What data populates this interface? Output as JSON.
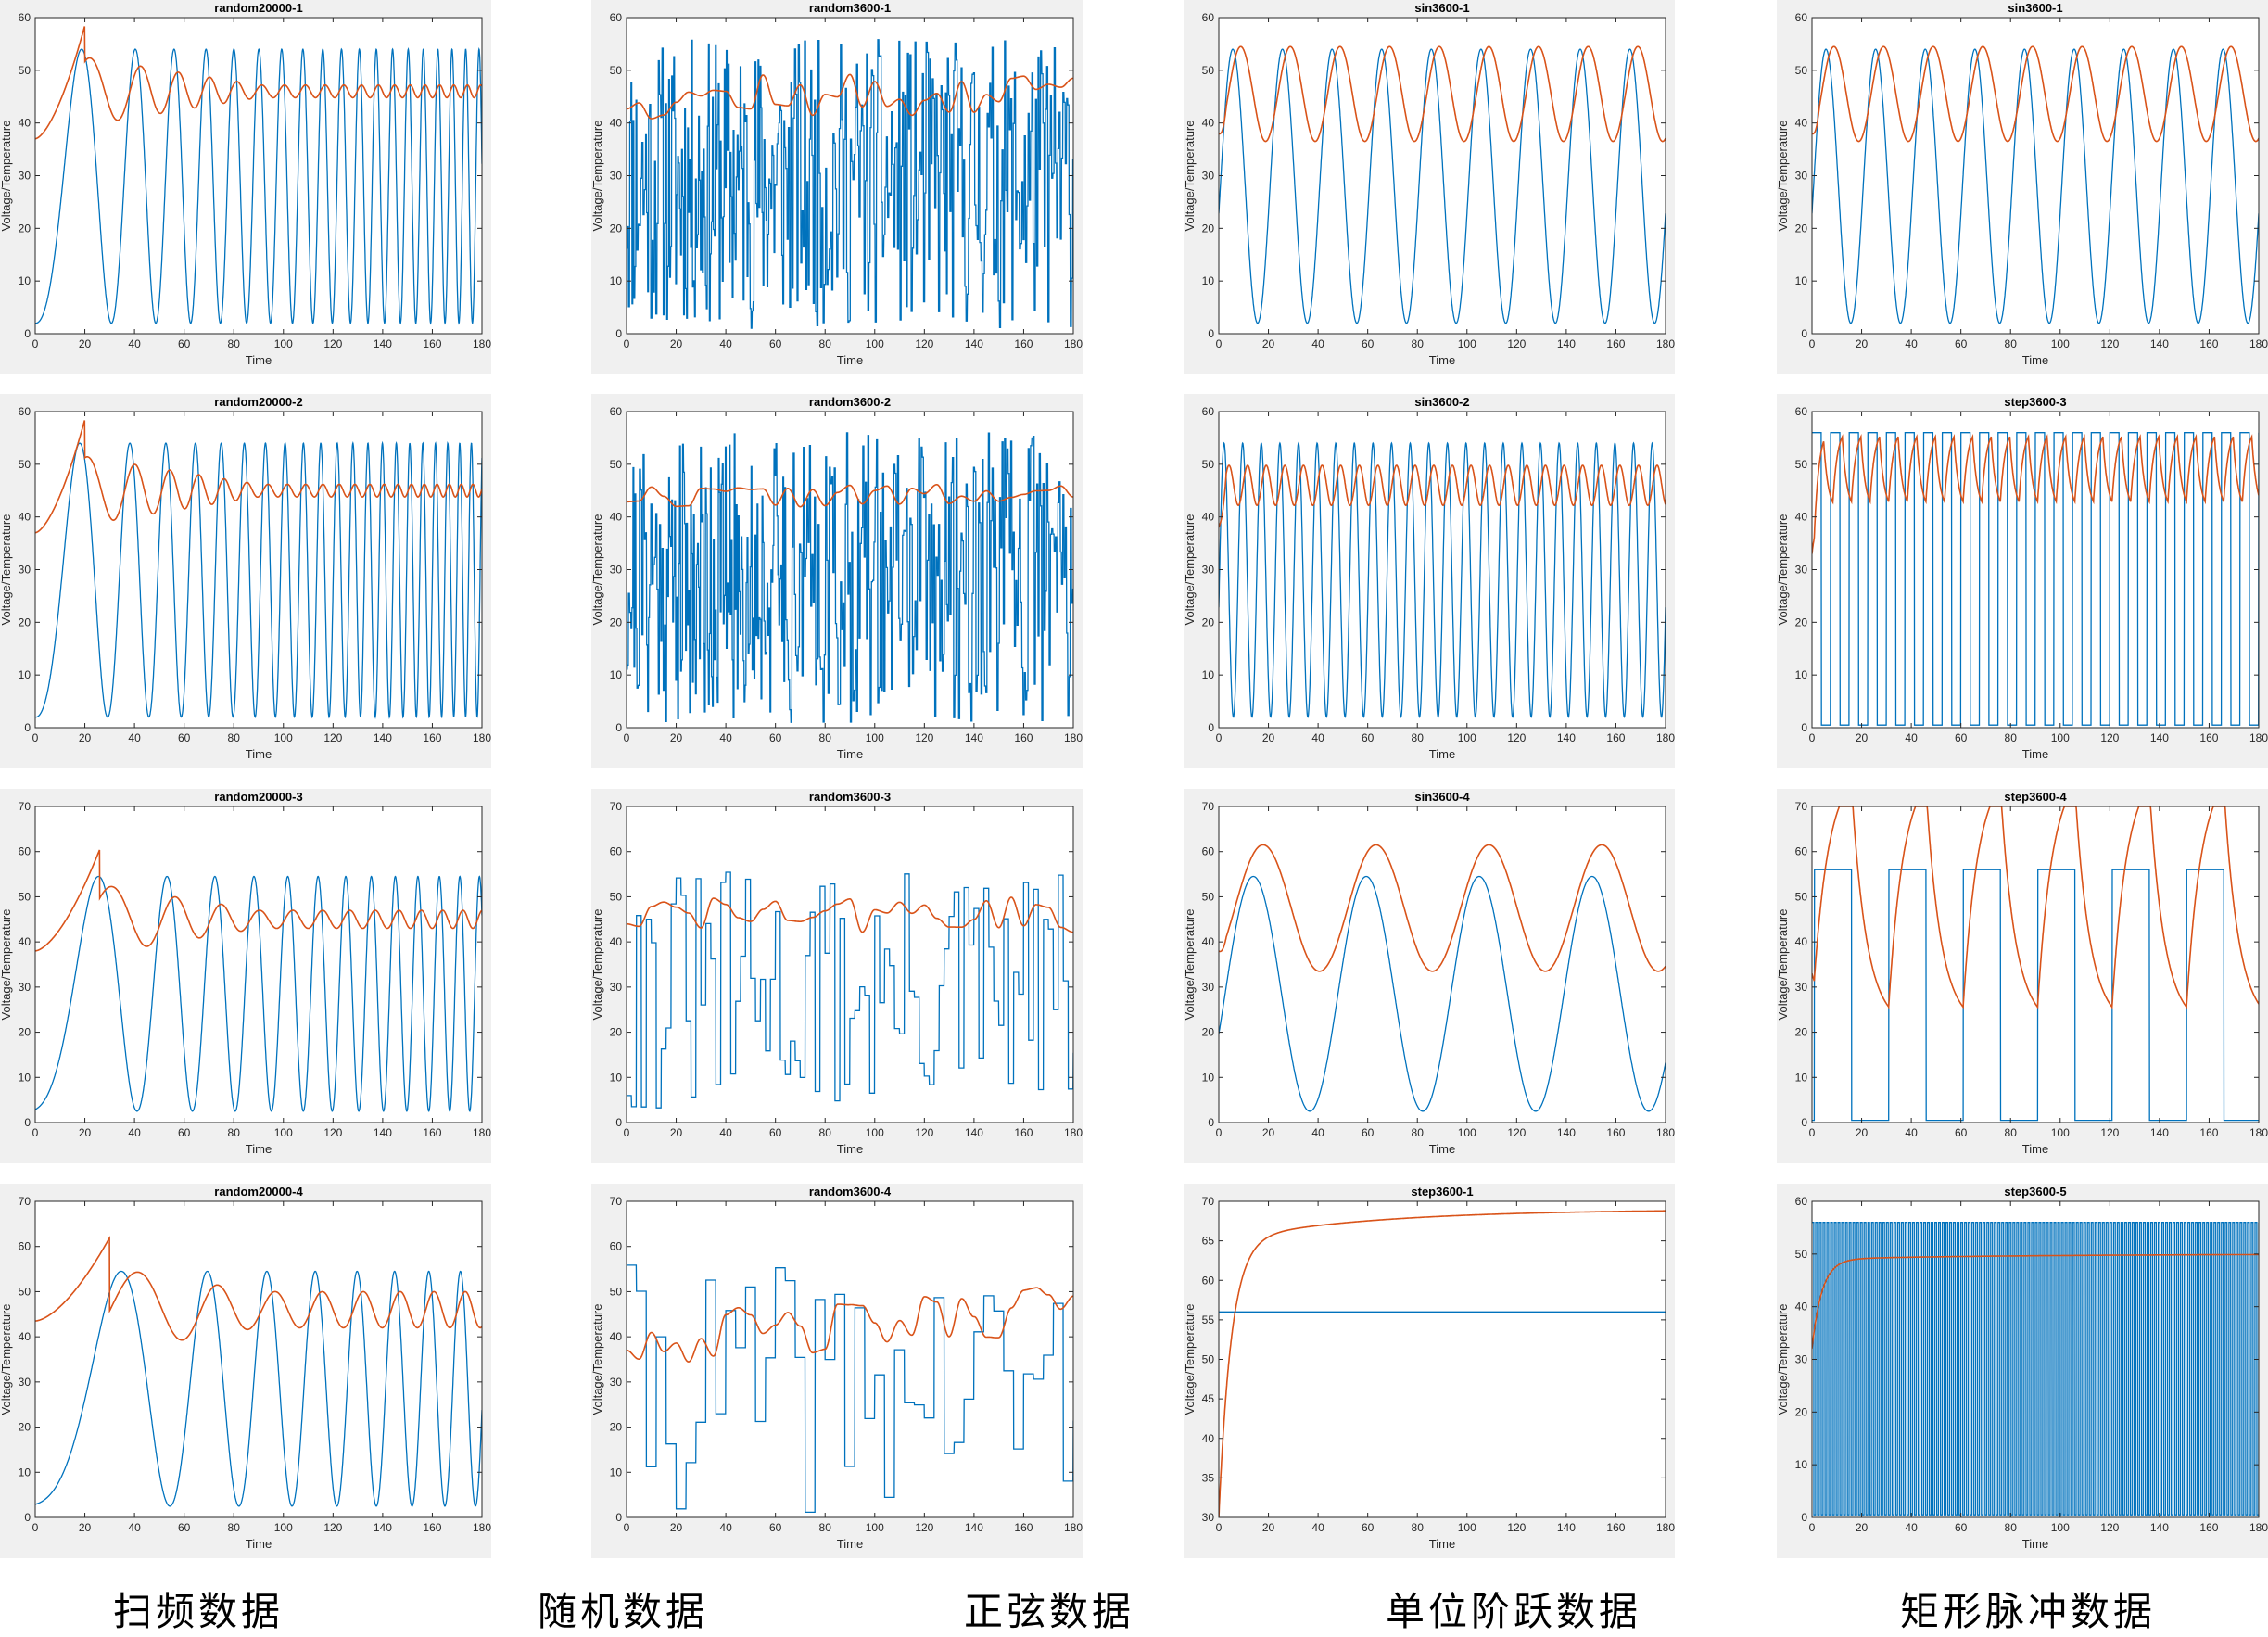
{
  "colors": {
    "input": "#0072BD",
    "output": "#D95319",
    "panel_bg": "#f0f0f0"
  },
  "captions": [
    "扫频数据",
    "随机数据",
    "正弦数据",
    "单位阶跃数据",
    "矩形脉冲数据"
  ],
  "chart_data": [
    {
      "type": "line",
      "title": "random20000-1",
      "xlabel": "Time",
      "ylabel": "Voltage/Temperature",
      "xlim": [
        0,
        180
      ],
      "ylim": [
        0,
        60
      ],
      "xticks": [
        0,
        20,
        40,
        60,
        80,
        100,
        120,
        140,
        160,
        180
      ],
      "yticks": [
        0,
        10,
        20,
        30,
        40,
        50,
        60
      ],
      "grid": false,
      "series": [
        {
          "role": "input",
          "kind": "sweep",
          "mean": 28,
          "amp": 26,
          "f0": 0.018,
          "f1": 0.19,
          "phase": -1.6
        },
        {
          "role": "output",
          "kind": "sweep_response",
          "base": 46,
          "start": 37,
          "peak": 58.5,
          "peakAt": 20,
          "amp0": 8,
          "amp1": 1.2,
          "f0": 0.018,
          "f1": 0.19
        }
      ]
    },
    {
      "type": "line",
      "title": "random3600-1",
      "xlabel": "Time",
      "ylabel": "Voltage/Temperature",
      "xlim": [
        0,
        180
      ],
      "ylim": [
        0,
        60
      ],
      "xticks": [
        0,
        20,
        40,
        60,
        80,
        100,
        120,
        140,
        160,
        180
      ],
      "yticks": [
        0,
        10,
        20,
        30,
        40,
        50,
        60
      ],
      "grid": false,
      "series": [
        {
          "role": "input",
          "kind": "noise",
          "min": 1,
          "max": 56,
          "dt": 0.4,
          "seed": 11
        },
        {
          "role": "output",
          "kind": "smooth_noise",
          "mean": 45,
          "spread": 4.5,
          "seed": 12
        }
      ]
    },
    {
      "type": "line",
      "title": "sin3600-1",
      "xlabel": "Time",
      "ylabel": "Voltage/Temperature",
      "xlim": [
        0,
        180
      ],
      "ylim": [
        0,
        60
      ],
      "xticks": [
        0,
        20,
        40,
        60,
        80,
        100,
        120,
        140,
        160,
        180
      ],
      "yticks": [
        0,
        10,
        20,
        30,
        40,
        50,
        60
      ],
      "grid": false,
      "series": [
        {
          "role": "input",
          "kind": "sine",
          "mean": 28,
          "amp": 26,
          "period": 20,
          "phase": -0.2
        },
        {
          "role": "output",
          "kind": "sine_response",
          "mean": 45.5,
          "amp": 9,
          "period": 20,
          "lag": 3.2,
          "start": 38
        }
      ]
    },
    {
      "type": "line",
      "title": "sin3600-1",
      "xlabel": "Time",
      "ylabel": "Voltage/Temperature",
      "xlim": [
        0,
        180
      ],
      "ylim": [
        0,
        60
      ],
      "xticks": [
        0,
        20,
        40,
        60,
        80,
        100,
        120,
        140,
        160,
        180
      ],
      "yticks": [
        0,
        10,
        20,
        30,
        40,
        50,
        60
      ],
      "grid": false,
      "series": [
        {
          "role": "input",
          "kind": "sine",
          "mean": 28,
          "amp": 26,
          "period": 20,
          "phase": -0.2
        },
        {
          "role": "output",
          "kind": "sine_response",
          "mean": 45.5,
          "amp": 9,
          "period": 20,
          "lag": 3.2,
          "start": 38
        }
      ]
    },
    {
      "type": "line",
      "title": "random20000-2",
      "xlabel": "Time",
      "ylabel": "Voltage/Temperature",
      "xlim": [
        0,
        180
      ],
      "ylim": [
        0,
        60
      ],
      "xticks": [
        0,
        20,
        40,
        60,
        80,
        100,
        120,
        140,
        160,
        180
      ],
      "yticks": [
        0,
        10,
        20,
        30,
        40,
        50,
        60
      ],
      "grid": false,
      "series": [
        {
          "role": "input",
          "kind": "sweep",
          "mean": 28,
          "amp": 26,
          "f0": 0.018,
          "f1": 0.22,
          "phase": -1.6
        },
        {
          "role": "output",
          "kind": "sweep_response",
          "base": 45,
          "start": 37,
          "peak": 58.5,
          "peakAt": 20,
          "amp0": 8,
          "amp1": 1.2,
          "f0": 0.018,
          "f1": 0.22
        }
      ]
    },
    {
      "type": "line",
      "title": "random3600-2",
      "xlabel": "Time",
      "ylabel": "Voltage/Temperature",
      "xlim": [
        0,
        180
      ],
      "ylim": [
        0,
        60
      ],
      "xticks": [
        0,
        20,
        40,
        60,
        80,
        100,
        120,
        140,
        160,
        180
      ],
      "yticks": [
        0,
        10,
        20,
        30,
        40,
        50,
        60
      ],
      "grid": false,
      "series": [
        {
          "role": "input",
          "kind": "noise",
          "min": 1,
          "max": 56,
          "dt": 0.4,
          "seed": 21
        },
        {
          "role": "output",
          "kind": "smooth_noise",
          "mean": 44,
          "spread": 2.2,
          "seed": 22
        }
      ]
    },
    {
      "type": "line",
      "title": "sin3600-2",
      "xlabel": "Time",
      "ylabel": "Voltage/Temperature",
      "xlim": [
        0,
        180
      ],
      "ylim": [
        0,
        60
      ],
      "xticks": [
        0,
        20,
        40,
        60,
        80,
        100,
        120,
        140,
        160,
        180
      ],
      "yticks": [
        0,
        10,
        20,
        30,
        40,
        50,
        60
      ],
      "grid": false,
      "series": [
        {
          "role": "input",
          "kind": "sine",
          "mean": 28,
          "amp": 26,
          "period": 7.5,
          "phase": -0.2
        },
        {
          "role": "output",
          "kind": "sine_response",
          "mean": 46,
          "amp": 3.8,
          "period": 7.5,
          "lag": 2,
          "start": 38
        }
      ]
    },
    {
      "type": "line",
      "title": "step3600-3",
      "xlabel": "Time",
      "ylabel": "Voltage/Temperature",
      "xlim": [
        0,
        180
      ],
      "ylim": [
        0,
        60
      ],
      "xticks": [
        0,
        20,
        40,
        60,
        80,
        100,
        120,
        140,
        160,
        180
      ],
      "yticks": [
        0,
        10,
        20,
        30,
        40,
        50,
        60
      ],
      "grid": false,
      "series": [
        {
          "role": "input",
          "kind": "pulse",
          "high": 56,
          "low": 0.5,
          "period": 7.5,
          "duty": 0.5
        },
        {
          "role": "output",
          "kind": "pulse_response",
          "start": 33,
          "steady_mid": 49,
          "swing": 4.5,
          "period": 7.5
        }
      ]
    },
    {
      "type": "line",
      "title": "random20000-3",
      "xlabel": "Time",
      "ylabel": "Voltage/Temperature",
      "xlim": [
        0,
        180
      ],
      "ylim": [
        0,
        70
      ],
      "xticks": [
        0,
        20,
        40,
        60,
        80,
        100,
        120,
        140,
        160,
        180
      ],
      "yticks": [
        0,
        10,
        20,
        30,
        40,
        50,
        60,
        70
      ],
      "grid": false,
      "series": [
        {
          "role": "input",
          "kind": "sweep",
          "mean": 28.5,
          "amp": 26,
          "f0": 0.01,
          "f1": 0.13,
          "phase": -1.4
        },
        {
          "role": "output",
          "kind": "sweep_response",
          "base": 45,
          "start": 38,
          "peak": 60.5,
          "peakAt": 26,
          "amp0": 10,
          "amp1": 2,
          "f0": 0.01,
          "f1": 0.13
        }
      ]
    },
    {
      "type": "line",
      "title": "random3600-3",
      "xlabel": "Time",
      "ylabel": "Voltage/Temperature",
      "xlim": [
        0,
        180
      ],
      "ylim": [
        0,
        70
      ],
      "xticks": [
        0,
        20,
        40,
        60,
        80,
        100,
        120,
        140,
        160,
        180
      ],
      "yticks": [
        0,
        10,
        20,
        30,
        40,
        50,
        60,
        70
      ],
      "grid": false,
      "series": [
        {
          "role": "input",
          "kind": "noise",
          "min": 1,
          "max": 56,
          "dt": 2,
          "seed": 31
        },
        {
          "role": "output",
          "kind": "smooth_noise",
          "mean": 46,
          "spread": 4,
          "seed": 32
        }
      ]
    },
    {
      "type": "line",
      "title": "sin3600-4",
      "xlabel": "Time",
      "ylabel": "Voltage/Temperature",
      "xlim": [
        0,
        180
      ],
      "ylim": [
        0,
        70
      ],
      "xticks": [
        0,
        20,
        40,
        60,
        80,
        100,
        120,
        140,
        160,
        180
      ],
      "yticks": [
        0,
        10,
        20,
        30,
        40,
        50,
        60,
        70
      ],
      "grid": false,
      "series": [
        {
          "role": "input",
          "kind": "sine",
          "mean": 28.5,
          "amp": 26,
          "period": 45.5,
          "phase": -0.35
        },
        {
          "role": "output",
          "kind": "sine_response",
          "mean": 47.5,
          "amp": 14,
          "period": 45.5,
          "lag": 5,
          "start": 38
        }
      ]
    },
    {
      "type": "line",
      "title": "step3600-4",
      "xlabel": "Time",
      "ylabel": "Voltage/Temperature",
      "xlim": [
        0,
        180
      ],
      "ylim": [
        0,
        70
      ],
      "xticks": [
        0,
        20,
        40,
        60,
        80,
        100,
        120,
        140,
        160,
        180
      ],
      "yticks": [
        0,
        10,
        20,
        30,
        40,
        50,
        60,
        70
      ],
      "grid": false,
      "series": [
        {
          "role": "input",
          "kind": "pulse",
          "high": 56,
          "low": 0.5,
          "period": 30,
          "duty": 0.5,
          "offset": 1
        },
        {
          "role": "output",
          "kind": "pulse_response",
          "start": 33,
          "steady_mid": 50,
          "swing": 16,
          "period": 30,
          "tau": 6
        }
      ]
    },
    {
      "type": "line",
      "title": "random20000-4",
      "xlabel": "Time",
      "ylabel": "Voltage/Temperature",
      "xlim": [
        0,
        180
      ],
      "ylim": [
        0,
        70
      ],
      "xticks": [
        0,
        20,
        40,
        60,
        80,
        100,
        120,
        140,
        160,
        180
      ],
      "yticks": [
        0,
        10,
        20,
        30,
        40,
        50,
        60,
        70
      ],
      "grid": false,
      "series": [
        {
          "role": "input",
          "kind": "sweep",
          "mean": 28.5,
          "amp": 26,
          "f0": 0.006,
          "f1": 0.085,
          "phase": -1.4
        },
        {
          "role": "output",
          "kind": "sweep_response",
          "base": 46,
          "start": 43.5,
          "peak": 62,
          "peakAt": 30,
          "amp0": 12,
          "amp1": 4,
          "f0": 0.006,
          "f1": 0.085
        }
      ]
    },
    {
      "type": "line",
      "title": "random3600-4",
      "xlabel": "Time",
      "ylabel": "Voltage/Temperature",
      "xlim": [
        0,
        180
      ],
      "ylim": [
        0,
        70
      ],
      "xticks": [
        0,
        20,
        40,
        60,
        80,
        100,
        120,
        140,
        160,
        180
      ],
      "yticks": [
        0,
        10,
        20,
        30,
        40,
        50,
        60,
        70
      ],
      "grid": false,
      "series": [
        {
          "role": "input",
          "kind": "noise",
          "min": 1,
          "max": 56,
          "dt": 4,
          "seed": 41
        },
        {
          "role": "output",
          "kind": "smooth_noise",
          "mean": 40,
          "spread": 6,
          "seed": 42,
          "trend": 8
        }
      ]
    },
    {
      "type": "line",
      "title": "step3600-1",
      "xlabel": "Time",
      "ylabel": "Voltage/Temperature",
      "xlim": [
        0,
        180
      ],
      "ylim": [
        30,
        70
      ],
      "xticks": [
        0,
        20,
        40,
        60,
        80,
        100,
        120,
        140,
        160,
        180
      ],
      "yticks": [
        30,
        35,
        40,
        45,
        50,
        55,
        60,
        65,
        70
      ],
      "grid": false,
      "series": [
        {
          "role": "input",
          "kind": "constant",
          "value": 56
        },
        {
          "role": "output",
          "kind": "step_response",
          "start": 30,
          "fast": 65,
          "final": 69,
          "tau": 5,
          "slow": 60
        }
      ]
    },
    {
      "type": "line",
      "title": "step3600-5",
      "xlabel": "Time",
      "ylabel": "Voltage/Temperature",
      "xlim": [
        0,
        180
      ],
      "ylim": [
        0,
        60
      ],
      "xticks": [
        0,
        20,
        40,
        60,
        80,
        100,
        120,
        140,
        160,
        180
      ],
      "yticks": [
        0,
        10,
        20,
        30,
        40,
        50,
        60
      ],
      "grid": false,
      "series": [
        {
          "role": "input",
          "kind": "pulse",
          "high": 56,
          "low": 0.5,
          "period": 1.5,
          "duty": 0.5
        },
        {
          "role": "output",
          "kind": "step_response",
          "start": 32,
          "fast": 49,
          "final": 50,
          "tau": 4,
          "slow": 80
        }
      ]
    }
  ]
}
